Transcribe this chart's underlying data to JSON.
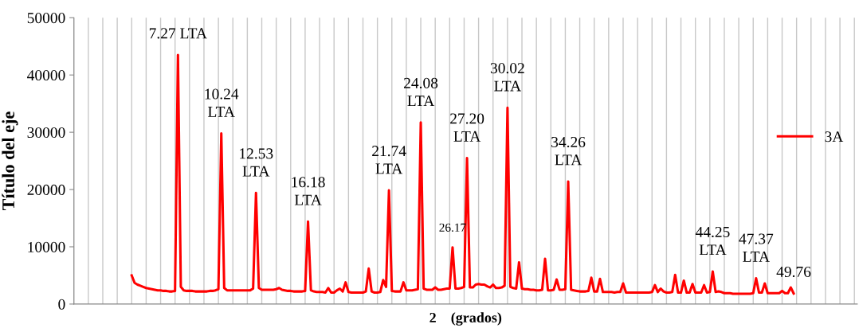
{
  "chart_data": {
    "type": "line",
    "xlabel": "2    (grados)",
    "ylabel": "Título del eje",
    "categories": [
      null,
      null,
      null,
      null,
      null,
      null,
      null,
      null,
      null,
      null,
      null,
      null,
      null,
      null,
      null,
      null,
      null,
      null,
      null,
      null,
      null,
      null,
      null,
      null,
      null,
      null,
      null,
      null,
      null,
      null,
      null,
      null,
      null,
      null,
      null,
      null,
      null,
      null,
      null,
      null,
      null,
      null,
      null,
      null,
      null,
      null,
      null,
      null,
      null,
      null,
      null,
      null,
      null,
      null,
      null,
      null,
      null,
      null,
      null,
      null,
      null,
      null,
      null,
      null,
      null,
      null,
      null,
      null,
      null,
      null,
      null,
      null,
      null,
      null,
      null,
      null,
      null,
      null,
      null,
      null,
      null,
      null,
      null,
      null,
      null,
      null,
      null,
      null,
      null,
      null,
      null,
      null,
      null,
      null,
      null,
      null,
      null,
      null,
      null,
      null,
      null,
      null,
      null,
      null,
      null,
      null,
      null,
      null,
      null,
      null,
      null,
      null,
      null,
      null,
      null,
      null,
      null,
      null,
      null,
      null,
      null,
      null,
      null,
      null,
      null,
      null,
      null,
      null,
      null,
      null,
      null,
      null,
      null,
      null,
      null,
      null,
      null,
      null,
      null,
      null,
      null,
      null,
      null,
      null,
      null,
      null,
      null,
      null,
      null,
      null,
      null,
      null,
      null,
      null,
      null,
      null,
      null,
      null,
      null,
      null,
      null,
      null,
      null,
      null,
      null,
      null,
      null,
      null,
      null,
      null,
      null,
      null,
      null,
      null,
      null,
      null,
      null,
      null,
      null,
      null,
      null,
      null,
      null,
      null,
      null,
      null,
      null,
      null,
      null,
      null,
      null,
      null,
      null,
      null,
      null,
      null,
      null,
      null,
      null,
      null,
      null,
      null,
      null,
      null,
      null,
      null,
      null,
      null,
      null,
      null,
      null,
      null,
      null,
      null,
      null,
      null,
      null,
      null,
      null,
      null,
      null,
      null,
      null,
      null,
      null,
      null,
      null,
      null,
      null,
      null
    ],
    "ylim": [
      0,
      50000
    ],
    "yticks": [
      0,
      10000,
      20000,
      30000,
      40000,
      50000
    ],
    "grid": "x",
    "legend": "right",
    "marker": "none",
    "line_style": "solid",
    "series": [
      {
        "name": "3A",
        "color": "#ff0000",
        "values": [
          5000,
          3700,
          3400,
          3200,
          3000,
          2800,
          2700,
          2600,
          2500,
          2400,
          2400,
          2300,
          2300,
          2200,
          2200,
          2300,
          43500,
          3000,
          2400,
          2300,
          2300,
          2300,
          2200,
          2200,
          2200,
          2200,
          2200,
          2300,
          2300,
          2400,
          2600,
          29800,
          2800,
          2400,
          2400,
          2400,
          2400,
          2400,
          2400,
          2400,
          2400,
          2400,
          2700,
          19400,
          2800,
          2500,
          2500,
          2500,
          2500,
          2500,
          2600,
          2800,
          2500,
          2400,
          2300,
          2300,
          2200,
          2200,
          2200,
          2200,
          2300,
          14400,
          2400,
          2200,
          2100,
          2100,
          2100,
          2000,
          2800,
          2000,
          2000,
          2400,
          2700,
          2200,
          3800,
          2100,
          2000,
          2000,
          2000,
          2000,
          2000,
          2200,
          6200,
          2200,
          2000,
          2000,
          2100,
          4200,
          3000,
          19850,
          2300,
          2200,
          2200,
          2200,
          3800,
          2400,
          2400,
          2400,
          2500,
          2600,
          31700,
          2700,
          2500,
          2500,
          2500,
          2900,
          2500,
          2500,
          2600,
          2700,
          2700,
          9900,
          2700,
          2700,
          2800,
          3000,
          25500,
          2900,
          2900,
          3400,
          3500,
          3400,
          3400,
          3100,
          2900,
          3400,
          2800,
          2800,
          2900,
          3200,
          34300,
          3000,
          2800,
          2700,
          7300,
          2700,
          2600,
          2600,
          2500,
          2500,
          2400,
          2400,
          2500,
          7900,
          2400,
          2400,
          2500,
          4300,
          2500,
          2500,
          2600,
          21400,
          2500,
          2400,
          2300,
          2200,
          2200,
          2200,
          2300,
          4600,
          2200,
          2200,
          4400,
          2100,
          2100,
          2100,
          2100,
          2000,
          2100,
          2100,
          3600,
          2000,
          2000,
          2000,
          2000,
          2000,
          2000,
          2000,
          2000,
          2000,
          2100,
          3300,
          2100,
          2700,
          2200,
          2000,
          2000,
          2100,
          5100,
          2000,
          2000,
          4100,
          2000,
          2000,
          3500,
          2000,
          2000,
          2000,
          3300,
          2000,
          2100,
          5700,
          2100,
          2200,
          2100,
          1900,
          1900,
          1900,
          1800,
          1800,
          1800,
          1800,
          1800,
          1800,
          1800,
          1900,
          4500,
          2000,
          2000,
          3600,
          1900,
          1900,
          1900,
          1900,
          1900,
          2300,
          1900,
          1900,
          2900,
          1850
        ]
      }
    ],
    "annotations": [
      {
        "text": "7.27 LTA",
        "y": 43500
      },
      {
        "text": "10.24\nLTA",
        "y": 29800
      },
      {
        "text": "12.53\nLTA",
        "y": 19400
      },
      {
        "text": "16.18\nLTA",
        "y": 14400
      },
      {
        "text": "21.74\nLTA",
        "y": 19850
      },
      {
        "text": "24.08\nLTA",
        "y": 31700
      },
      {
        "text": "26.17",
        "y": 9900
      },
      {
        "text": "27.20\nLTA",
        "y": 25500
      },
      {
        "text": "30.02\nLTA",
        "y": 34300
      },
      {
        "text": "34.26\nLTA",
        "y": 21400
      },
      {
        "text": "44.25\nLTA",
        "y": 5700
      },
      {
        "text": "47.37\nLTA",
        "y": 4500
      },
      {
        "text": "49.76",
        "y": 1850
      }
    ]
  }
}
